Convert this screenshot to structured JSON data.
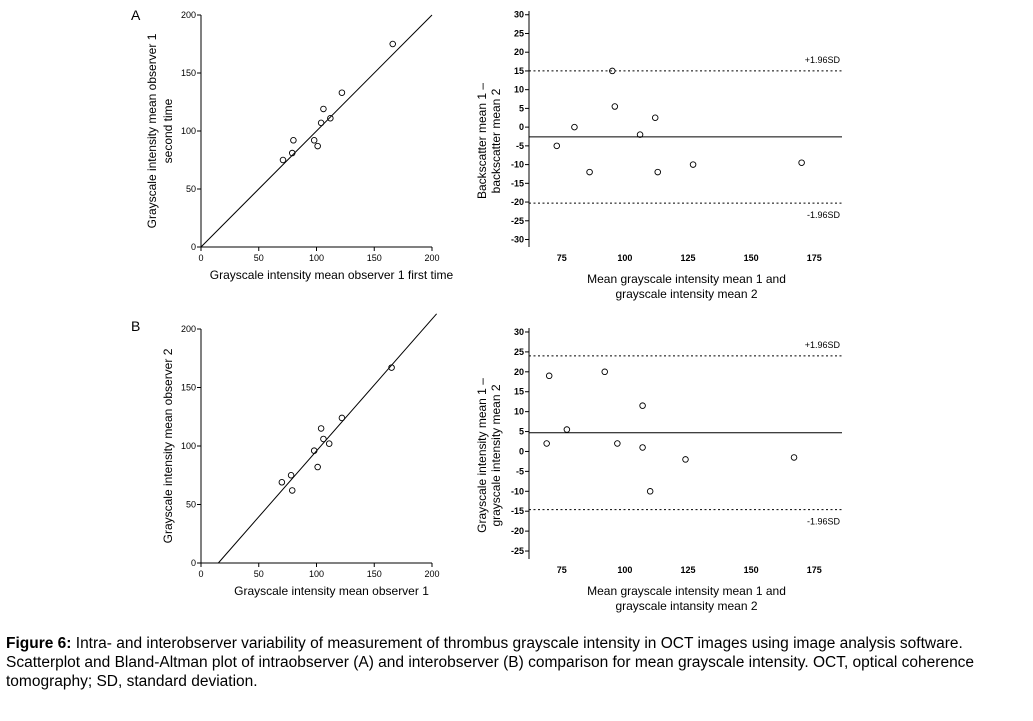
{
  "panels": {
    "A": "A",
    "B": "B"
  },
  "caption": {
    "label": "Figure 6:",
    "text": " Intra- and interobserver variability of measurement of thrombus grayscale intensity in OCT images using image analysis software. Scatterplot and Bland-Altman plot of intraobserver (A) and interobserver (B) comparison for mean grayscale intensity. OCT, optical coherence tomography; SD, standard deviation."
  },
  "chart_data": [
    {
      "type": "scatter",
      "panel": "A",
      "xlabel": "Grayscale intensity mean observer 1 first time",
      "ylabel": [
        "Grayscale intensity mean observer 1",
        "second  time"
      ],
      "xlim": [
        0,
        200
      ],
      "ylim": [
        0,
        200
      ],
      "xticks": [
        0,
        50,
        100,
        150,
        200
      ],
      "yticks": [
        0,
        50,
        100,
        150,
        200
      ],
      "identity_line": {
        "x": [
          0,
          200
        ],
        "y": [
          0,
          200
        ]
      },
      "points": [
        {
          "x": 71,
          "y": 75
        },
        {
          "x": 79,
          "y": 81
        },
        {
          "x": 80,
          "y": 92
        },
        {
          "x": 98,
          "y": 92
        },
        {
          "x": 101,
          "y": 87
        },
        {
          "x": 104,
          "y": 107
        },
        {
          "x": 106,
          "y": 119
        },
        {
          "x": 112,
          "y": 111
        },
        {
          "x": 122,
          "y": 133
        },
        {
          "x": 166,
          "y": 175
        }
      ]
    },
    {
      "type": "scatter",
      "panel": "A",
      "subtype": "bland-altman",
      "xlabel": [
        "Mean grayscale intensity mean 1 and",
        "grayscale intensity mean 2"
      ],
      "ylabel": [
        "Backscatter mean 1 –",
        "backscatter mean 2"
      ],
      "xlim": [
        62,
        186
      ],
      "ylim": [
        -32,
        31
      ],
      "xticks": [
        75,
        100,
        125,
        150,
        175
      ],
      "yticks": [
        30,
        25,
        20,
        15,
        10,
        5,
        0,
        -5,
        -10,
        -15,
        -20,
        -25,
        -30
      ],
      "mean_line": -2.6,
      "upper_limit": {
        "value": 15,
        "label": "+1.96SD"
      },
      "lower_limit": {
        "value": -20.3,
        "label": "-1.96SD"
      },
      "points": [
        {
          "x": 73,
          "y": -5
        },
        {
          "x": 80,
          "y": 0
        },
        {
          "x": 86,
          "y": -12
        },
        {
          "x": 95,
          "y": 15
        },
        {
          "x": 96,
          "y": 5.5
        },
        {
          "x": 106,
          "y": -2
        },
        {
          "x": 112,
          "y": 2.5
        },
        {
          "x": 113,
          "y": -12
        },
        {
          "x": 127,
          "y": -10
        },
        {
          "x": 170,
          "y": -9.5
        }
      ]
    },
    {
      "type": "scatter",
      "panel": "B",
      "xlabel": "Grayscale intensity mean observer 1",
      "ylabel": [
        "Grayscale intensity  mean observer 2"
      ],
      "xlim": [
        0,
        200
      ],
      "ylim": [
        0,
        200
      ],
      "xticks": [
        0,
        50,
        100,
        150,
        200
      ],
      "yticks": [
        0,
        50,
        100,
        150,
        200
      ],
      "identity_line": {
        "x": [
          15,
          204
        ],
        "y": [
          0,
          213
        ]
      },
      "points": [
        {
          "x": 70,
          "y": 69
        },
        {
          "x": 78,
          "y": 75
        },
        {
          "x": 79,
          "y": 62
        },
        {
          "x": 98,
          "y": 96
        },
        {
          "x": 101,
          "y": 82
        },
        {
          "x": 104,
          "y": 115
        },
        {
          "x": 106,
          "y": 106
        },
        {
          "x": 111,
          "y": 102
        },
        {
          "x": 122,
          "y": 124
        },
        {
          "x": 165,
          "y": 167
        }
      ]
    },
    {
      "type": "scatter",
      "panel": "B",
      "subtype": "bland-altman",
      "xlabel": [
        "Mean grayscale intensity mean 1 and",
        "grayscale intansity mean 2"
      ],
      "ylabel": [
        "Grayscale intensity  mean 1 –",
        "grayscale intensity mean 2"
      ],
      "xlim": [
        62,
        186
      ],
      "ylim": [
        -27,
        31
      ],
      "xticks": [
        75,
        100,
        125,
        150,
        175
      ],
      "yticks": [
        30,
        25,
        20,
        15,
        10,
        5,
        0,
        -5,
        -10,
        -15,
        -20,
        -25
      ],
      "mean_line": 4.7,
      "upper_limit": {
        "value": 24,
        "label": "+1.96SD"
      },
      "lower_limit": {
        "value": -14.6,
        "label": "-1.96SD"
      },
      "points": [
        {
          "x": 70,
          "y": 19
        },
        {
          "x": 69,
          "y": 2
        },
        {
          "x": 77,
          "y": 5.5
        },
        {
          "x": 92,
          "y": 20
        },
        {
          "x": 97,
          "y": 2
        },
        {
          "x": 107,
          "y": 11.5
        },
        {
          "x": 107,
          "y": 1
        },
        {
          "x": 110,
          "y": -10
        },
        {
          "x": 124,
          "y": -2
        },
        {
          "x": 167,
          "y": -1.5
        }
      ]
    }
  ]
}
